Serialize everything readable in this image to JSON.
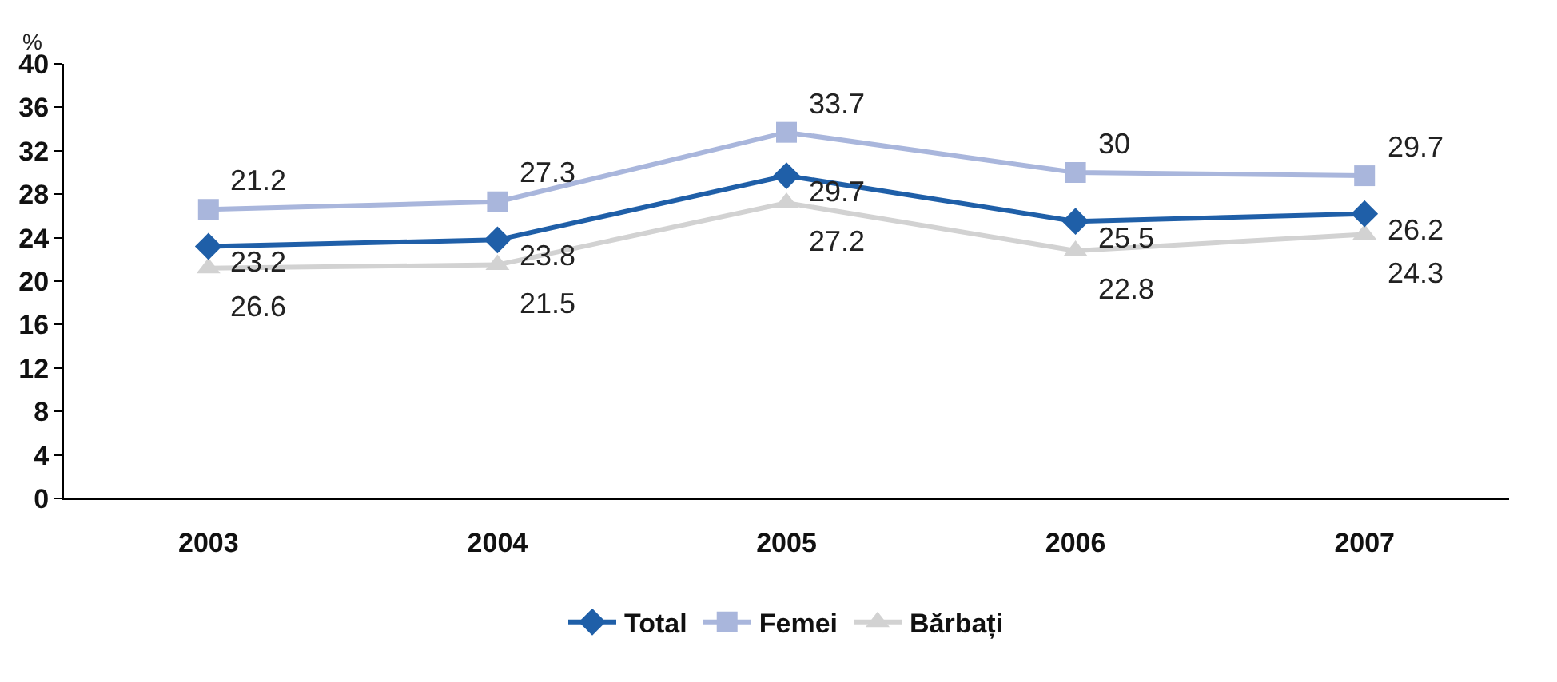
{
  "chart_data": {
    "type": "line",
    "ylabel": "%",
    "categories": [
      "2003",
      "2004",
      "2005",
      "2006",
      "2007"
    ],
    "series": [
      {
        "name": "Total",
        "color": "#1f5fa8",
        "marker": "diamond",
        "values": [
          23.2,
          23.8,
          29.7,
          25.5,
          26.2
        ],
        "value_labels": [
          "23.2",
          "23.8",
          "29.7",
          "25.5",
          "26.2"
        ]
      },
      {
        "name": "Femei",
        "color": "#a9b6dc",
        "marker": "square",
        "values": [
          26.6,
          27.3,
          33.7,
          30,
          29.7
        ],
        "value_labels": [
          null,
          "27.3",
          "33.7",
          "30",
          "29.7"
        ]
      },
      {
        "name": "Bărbați",
        "color": "#d2d2d2",
        "marker": "triangle",
        "values": [
          21.2,
          21.5,
          27.2,
          22.8,
          24.3
        ],
        "value_labels": [
          null,
          "21.5",
          "27.2",
          "22.8",
          "24.3"
        ]
      }
    ],
    "annotations": [
      {
        "text": "21.2",
        "x": "2003",
        "y": 26.6
      },
      {
        "text": "26.6",
        "x": "2003",
        "y": 21.2
      }
    ],
    "ylim": [
      0,
      40
    ],
    "yticks": [
      0,
      4,
      8,
      12,
      16,
      20,
      24,
      28,
      32,
      36,
      40
    ],
    "grid": false,
    "legend": "bottom",
    "line_style": "solid"
  }
}
